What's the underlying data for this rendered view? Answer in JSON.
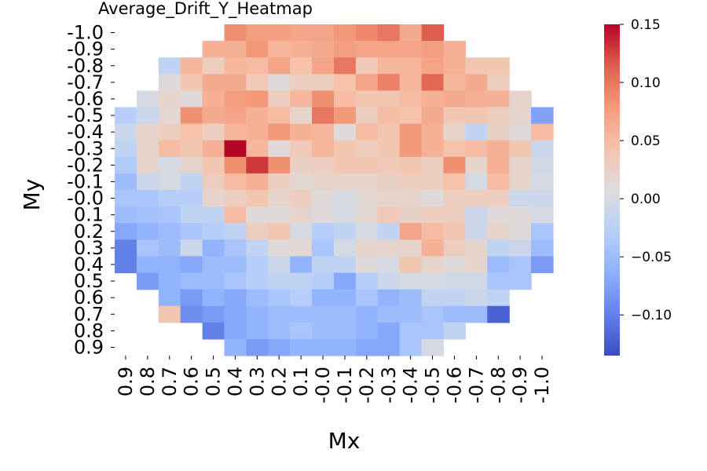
{
  "chart_data": {
    "type": "heatmap",
    "title": "Average_Drift_Y_Heatmap",
    "xlabel": "Mx",
    "ylabel": "My",
    "x_categories": [
      "0.9",
      "0.8",
      "0.7",
      "0.6",
      "0.5",
      "0.4",
      "0.3",
      "0.2",
      "0.1",
      "-0.0",
      "-0.1",
      "-0.2",
      "-0.3",
      "-0.4",
      "-0.5",
      "-0.6",
      "-0.7",
      "-0.8",
      "-0.9",
      "-1.0"
    ],
    "y_categories": [
      "-1.0",
      "-0.9",
      "-0.8",
      "-0.7",
      "-0.6",
      "-0.5",
      "-0.4",
      "-0.3",
      "-0.2",
      "-0.1",
      "-0.0",
      "0.1",
      "0.2",
      "0.3",
      "0.4",
      "0.5",
      "0.6",
      "0.7",
      "0.8",
      "0.9"
    ],
    "colorbar": {
      "colormap": "coolwarm",
      "vmin": -0.135,
      "vmax": 0.15,
      "ticks": [
        0.15,
        0.1,
        0.05,
        0.0,
        -0.05,
        -0.1
      ],
      "tick_labels": [
        "0.15",
        "0.10",
        "0.05",
        "0.00",
        "−0.05",
        "−0.10"
      ]
    },
    "values": [
      [
        null,
        null,
        null,
        null,
        null,
        0.085,
        0.075,
        0.075,
        0.07,
        0.07,
        0.08,
        0.09,
        0.1,
        0.065,
        0.115,
        null,
        null,
        null,
        null,
        null
      ],
      [
        null,
        null,
        null,
        null,
        0.06,
        0.06,
        0.08,
        0.055,
        0.06,
        0.065,
        0.075,
        0.07,
        0.07,
        0.07,
        0.075,
        0.06,
        null,
        null,
        null,
        null
      ],
      [
        null,
        null,
        -0.02,
        0.055,
        0.03,
        0.055,
        0.05,
        0.07,
        0.045,
        0.07,
        0.1,
        0.035,
        0.055,
        0.055,
        0.07,
        0.06,
        0.04,
        0.04,
        null,
        null
      ],
      [
        null,
        null,
        0.01,
        0.04,
        0.065,
        0.065,
        0.035,
        0.01,
        0.03,
        0.03,
        0.045,
        0.07,
        0.095,
        0.055,
        0.11,
        0.055,
        0.065,
        0.03,
        null,
        null
      ],
      [
        null,
        0.0,
        0.02,
        0.01,
        0.06,
        0.075,
        0.08,
        0.03,
        0.055,
        0.085,
        0.05,
        0.04,
        0.04,
        0.05,
        0.06,
        0.065,
        0.06,
        0.06,
        0.02,
        null
      ],
      [
        -0.03,
        -0.01,
        0.015,
        0.085,
        0.065,
        0.07,
        0.06,
        0.05,
        0.02,
        0.1,
        0.08,
        0.03,
        0.05,
        0.045,
        0.065,
        0.04,
        0.04,
        0.03,
        0.02,
        -0.075
      ],
      [
        -0.01,
        0.02,
        0.03,
        0.045,
        0.03,
        0.055,
        0.06,
        0.08,
        0.06,
        0.055,
        0.01,
        0.05,
        0.04,
        0.08,
        0.06,
        0.02,
        -0.02,
        0.025,
        0.01,
        0.05
      ],
      [
        -0.02,
        0.02,
        0.05,
        0.04,
        0.06,
        0.15,
        0.055,
        0.01,
        0.035,
        0.055,
        0.04,
        0.03,
        0.04,
        0.08,
        0.06,
        0.045,
        0.05,
        0.06,
        0.04,
        -0.01
      ],
      [
        -0.035,
        0.02,
        0.0,
        0.02,
        0.04,
        0.085,
        0.13,
        0.085,
        0.025,
        0.03,
        0.04,
        0.04,
        0.035,
        0.04,
        0.03,
        0.085,
        0.02,
        0.06,
        0.02,
        -0.005
      ],
      [
        -0.05,
        -0.01,
        0.0,
        -0.02,
        0.03,
        0.05,
        0.06,
        0.03,
        0.015,
        0.02,
        0.02,
        0.02,
        0.025,
        0.03,
        0.03,
        0.045,
        0.0,
        0.05,
        0.02,
        0.0
      ],
      [
        -0.04,
        -0.04,
        -0.03,
        -0.03,
        0.02,
        0.03,
        0.04,
        0.02,
        0.03,
        0.01,
        0.0,
        0.015,
        0.02,
        0.02,
        0.01,
        0.03,
        0.03,
        0.03,
        -0.01,
        -0.01
      ],
      [
        -0.05,
        -0.045,
        -0.04,
        -0.02,
        -0.02,
        0.05,
        0.01,
        0.01,
        0.02,
        0.01,
        0.0,
        0.015,
        0.035,
        0.025,
        0.03,
        0.03,
        -0.01,
        0.01,
        0.01,
        0.0
      ],
      [
        -0.07,
        -0.06,
        -0.05,
        -0.04,
        -0.03,
        -0.02,
        0.03,
        0.04,
        0.0,
        -0.03,
        -0.02,
        0.0,
        -0.02,
        0.07,
        0.05,
        0.04,
        -0.01,
        0.02,
        0.01,
        -0.04
      ],
      [
        -0.1,
        -0.04,
        -0.05,
        -0.01,
        -0.06,
        -0.04,
        -0.02,
        0.01,
        0.015,
        -0.04,
        0.0,
        0.02,
        0.02,
        0.02,
        0.06,
        0.03,
        0.02,
        -0.02,
        -0.01,
        -0.05
      ],
      [
        -0.1,
        -0.06,
        -0.06,
        -0.07,
        -0.05,
        -0.05,
        -0.03,
        -0.01,
        -0.06,
        -0.02,
        -0.02,
        0.01,
        0.0,
        0.04,
        0.02,
        0.01,
        0.02,
        -0.05,
        -0.04,
        -0.08
      ],
      [
        null,
        -0.08,
        -0.06,
        -0.05,
        -0.05,
        -0.04,
        -0.03,
        -0.02,
        -0.02,
        -0.03,
        -0.07,
        -0.03,
        -0.01,
        0.0,
        0.0,
        -0.005,
        -0.005,
        -0.04,
        -0.04,
        null
      ],
      [
        null,
        null,
        -0.06,
        -0.08,
        -0.06,
        -0.07,
        -0.05,
        -0.04,
        -0.03,
        -0.06,
        -0.06,
        -0.04,
        -0.06,
        -0.05,
        -0.02,
        -0.02,
        -0.01,
        -0.02,
        null,
        null
      ],
      [
        null,
        null,
        0.04,
        -0.09,
        -0.08,
        -0.07,
        -0.06,
        -0.05,
        -0.05,
        -0.05,
        -0.05,
        -0.06,
        -0.05,
        -0.05,
        -0.04,
        -0.05,
        -0.05,
        -0.12,
        null,
        null
      ],
      [
        null,
        null,
        null,
        null,
        -0.1,
        -0.07,
        -0.06,
        -0.05,
        -0.04,
        -0.05,
        -0.05,
        -0.06,
        -0.07,
        -0.04,
        -0.04,
        -0.02,
        null,
        null,
        null,
        null
      ],
      [
        null,
        null,
        null,
        null,
        null,
        -0.06,
        -0.08,
        -0.07,
        -0.06,
        -0.06,
        -0.06,
        -0.07,
        -0.07,
        -0.04,
        0.0,
        null,
        null,
        null,
        null,
        null
      ]
    ]
  }
}
